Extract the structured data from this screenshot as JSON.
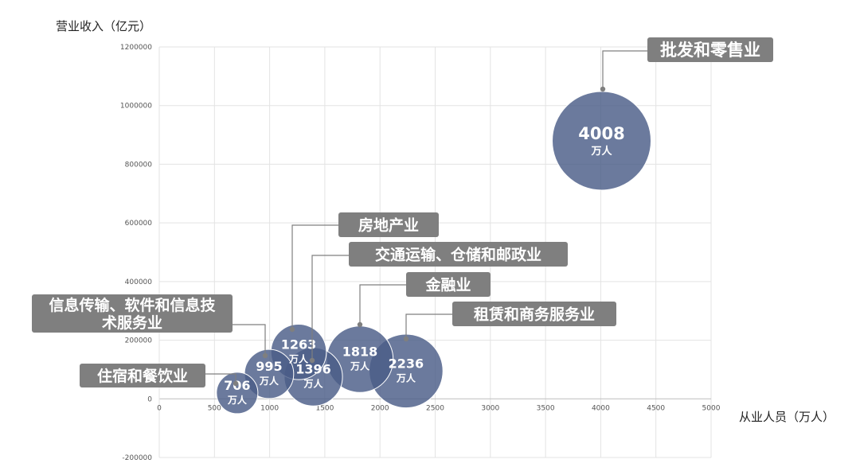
{
  "chart_data": {
    "type": "scatter",
    "subtype": "bubble",
    "ylabel": "营业收入（亿元）",
    "xlabel": "从业人员（万人）",
    "xlim": [
      0,
      5000
    ],
    "ylim": [
      -200000,
      1200000
    ],
    "xticks": [
      0,
      500,
      1000,
      1500,
      2000,
      2500,
      3000,
      3500,
      4000,
      4500,
      5000
    ],
    "yticks": [
      -200000,
      0,
      200000,
      400000,
      600000,
      800000,
      1000000,
      1200000
    ],
    "grid": true,
    "bubble_color": "#4a5d88",
    "callout_color": "#7f7f7f",
    "unit_label": "万人",
    "points": [
      {
        "label": "批发和零售业",
        "x": 4008,
        "y": 880000,
        "size": 4008,
        "size_label": "4008"
      },
      {
        "label": "住宿和餐饮业",
        "x": 706,
        "y": 20000,
        "size": 706,
        "size_label": "706"
      },
      {
        "label": "信息传输、软件和信息技术服务业",
        "x": 995,
        "y": 85000,
        "size": 995,
        "size_label": "995"
      },
      {
        "label": "房地产业",
        "x": 1263,
        "y": 160000,
        "size": 1263,
        "size_label": "1263"
      },
      {
        "label": "交通运输、仓储和邮政业",
        "x": 1396,
        "y": 75000,
        "size": 1396,
        "size_label": "1396"
      },
      {
        "label": "金融业",
        "x": 1818,
        "y": 135000,
        "size": 1818,
        "size_label": "1818"
      },
      {
        "label": "租赁和商务服务业",
        "x": 2236,
        "y": 95000,
        "size": 2236,
        "size_label": "2236"
      }
    ]
  }
}
